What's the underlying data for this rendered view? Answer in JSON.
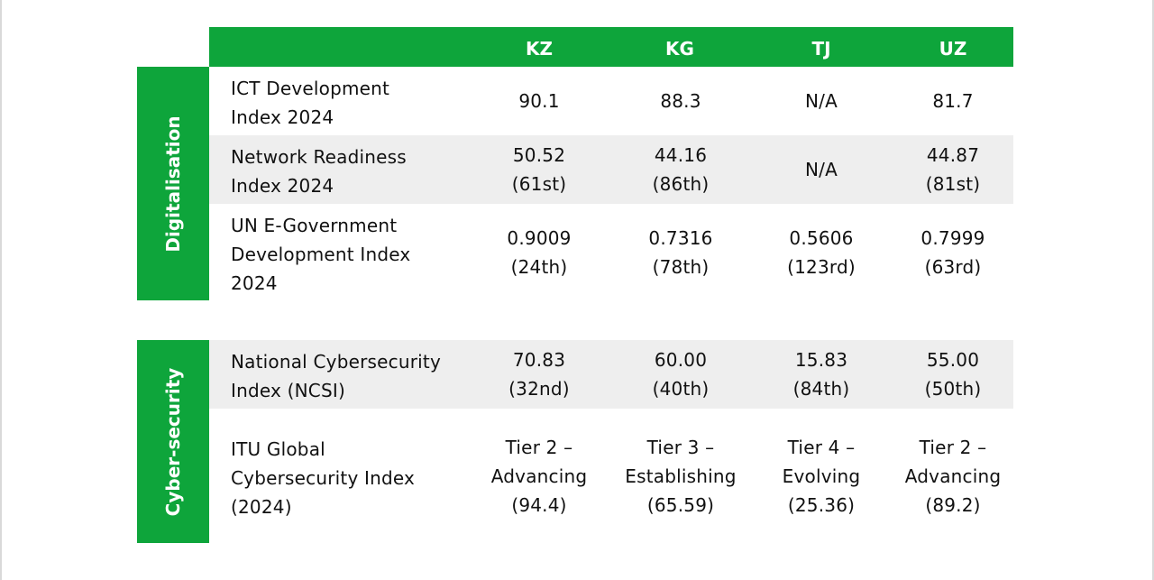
{
  "columns": [
    "KZ",
    "KG",
    "TJ",
    "UZ"
  ],
  "groups": [
    {
      "name": "Digitalisation",
      "rows": [
        {
          "label": "ICT Development\nIndex 2024",
          "values": [
            "90.1",
            "88.3",
            "N/A",
            "81.7"
          ]
        },
        {
          "label": "Network Readiness\nIndex 2024",
          "values": [
            "50.52\n(61st)",
            "44.16\n(86th)",
            "N/A",
            "44.87\n(81st)"
          ]
        },
        {
          "label": "UN E-Government\nDevelopment Index\n2024",
          "values": [
            "0.9009\n(24th)",
            "0.7316\n(78th)",
            "0.5606\n(123rd)",
            "0.7999\n(63rd)"
          ]
        }
      ]
    },
    {
      "name": "Cyber-security",
      "rows": [
        {
          "label": "National Cybersecurity\nIndex (NCSI)",
          "values": [
            "70.83\n(32nd)",
            "60.00\n(40th)",
            "15.83\n(84th)",
            "55.00\n(50th)"
          ]
        },
        {
          "label": "ITU Global\nCybersecurity Index\n(2024)",
          "values": [
            "Tier 2 –\nAdvancing\n(94.4)",
            "Tier 3 –\nEstablishing\n(65.59)",
            "Tier 4 –\nEvolving\n(25.36)",
            "Tier 2 –\nAdvancing\n(89.2)"
          ]
        }
      ]
    }
  ]
}
